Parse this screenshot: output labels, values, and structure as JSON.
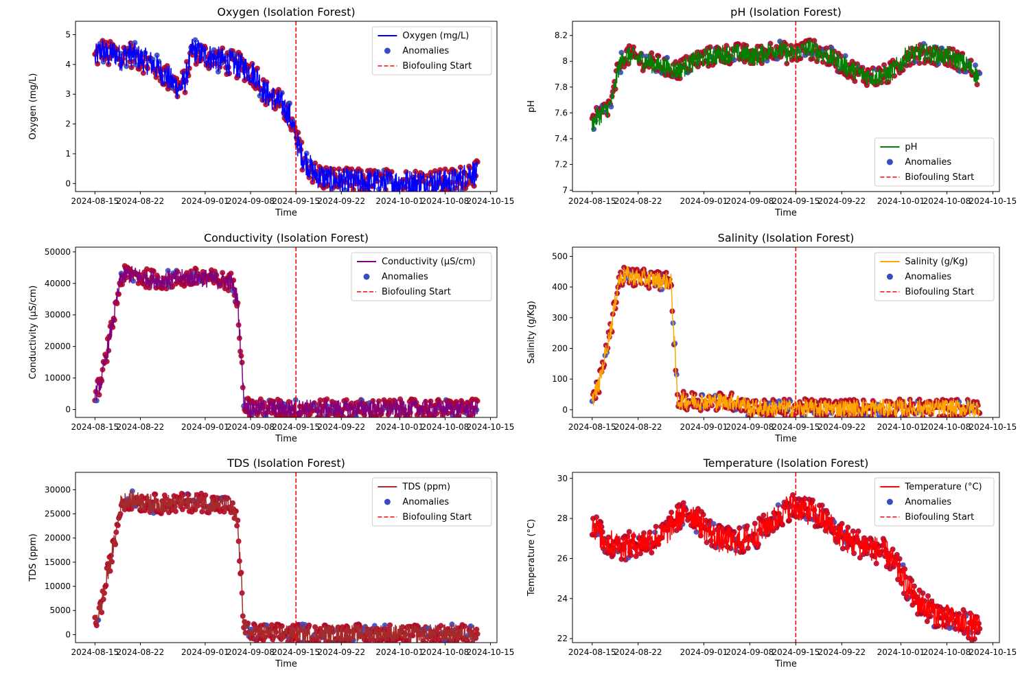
{
  "figure": {
    "bg_color": "#ffffff",
    "anomaly_color": "#3b4cc0",
    "anomaly_edge_color": "#b40426",
    "threshold_color": "#ff0000"
  },
  "chart_data": [
    {
      "type": "line",
      "title": "Oxygen (Isolation Forest)",
      "xlabel": "Time",
      "ylabel": "Oxygen (mg/L)",
      "x_range": [
        "2024-08-12",
        "2024-10-16"
      ],
      "ylim": [
        -0.27,
        5.45
      ],
      "yticks": [
        0,
        1,
        2,
        3,
        4,
        5
      ],
      "xticks": [
        "2024-08-15",
        "2024-08-22",
        "2024-09-01",
        "2024-09-08",
        "2024-09-15",
        "2024-09-22",
        "2024-10-01",
        "2024-10-08",
        "2024-10-15"
      ],
      "legend": {
        "position": "top-right",
        "entries": [
          "Oxygen (mg/L)",
          "Anomalies",
          "Biofouling Start"
        ]
      },
      "series": [
        {
          "name": "Oxygen (mg/L)",
          "color": "#0000ff",
          "points": [
            [
              "2024-08-15",
              4.2
            ],
            [
              "2024-08-16",
              4.5
            ],
            [
              "2024-08-17",
              4.3
            ],
            [
              "2024-08-18",
              4.4
            ],
            [
              "2024-08-19",
              4.2
            ],
            [
              "2024-08-20",
              4.4
            ],
            [
              "2024-08-22",
              4.2
            ],
            [
              "2024-08-24",
              4.0
            ],
            [
              "2024-08-26",
              3.6
            ],
            [
              "2024-08-28",
              3.2
            ],
            [
              "2024-08-29",
              3.5
            ],
            [
              "2024-08-30",
              4.5
            ],
            [
              "2024-09-01",
              4.3
            ],
            [
              "2024-09-04",
              4.1
            ],
            [
              "2024-09-07",
              3.9
            ],
            [
              "2024-09-09",
              3.6
            ],
            [
              "2024-09-10",
              3.1
            ],
            [
              "2024-09-12",
              2.8
            ],
            [
              "2024-09-13",
              2.6
            ],
            [
              "2024-09-14",
              2.3
            ],
            [
              "2024-09-15",
              1.5
            ],
            [
              "2024-09-16",
              0.9
            ],
            [
              "2024-09-17",
              0.6
            ],
            [
              "2024-09-18",
              0.3
            ],
            [
              "2024-09-20",
              0.15
            ],
            [
              "2024-09-22",
              0.08
            ],
            [
              "2024-09-25",
              0.05
            ],
            [
              "2024-09-30",
              0.04
            ],
            [
              "2024-10-05",
              0.05
            ],
            [
              "2024-10-08",
              0.05
            ],
            [
              "2024-10-10",
              0.1
            ],
            [
              "2024-10-12",
              0.4
            ],
            [
              "2024-10-13",
              0.3
            ]
          ]
        }
      ],
      "anomaly_band_half_width": 0.45,
      "threshold": {
        "name": "Biofouling Start",
        "x": "2024-09-15"
      }
    },
    {
      "type": "line",
      "title": "pH (Isolation Forest)",
      "xlabel": "Time",
      "ylabel": "pH",
      "x_range": [
        "2024-08-12",
        "2024-10-16"
      ],
      "ylim": [
        6.99,
        8.31
      ],
      "yticks": [
        7.0,
        7.2,
        7.4,
        7.6,
        7.8,
        8.0,
        8.2
      ],
      "xticks": [
        "2024-08-15",
        "2024-08-22",
        "2024-09-01",
        "2024-09-08",
        "2024-09-15",
        "2024-09-22",
        "2024-10-01",
        "2024-10-08",
        "2024-10-15"
      ],
      "legend": {
        "position": "bottom-right",
        "entries": [
          "pH",
          "Anomalies",
          "Biofouling Start"
        ]
      },
      "series": [
        {
          "name": "pH",
          "color": "#008000",
          "points": [
            [
              "2024-08-15",
              7.52
            ],
            [
              "2024-08-16",
              7.58
            ],
            [
              "2024-08-17",
              7.62
            ],
            [
              "2024-08-18",
              7.68
            ],
            [
              "2024-08-19",
              7.95
            ],
            [
              "2024-08-20",
              8.05
            ],
            [
              "2024-08-22",
              8.02
            ],
            [
              "2024-08-25",
              7.97
            ],
            [
              "2024-08-28",
              7.93
            ],
            [
              "2024-08-31",
              8.01
            ],
            [
              "2024-09-03",
              8.05
            ],
            [
              "2024-09-06",
              8.06
            ],
            [
              "2024-09-09",
              8.04
            ],
            [
              "2024-09-12",
              8.1
            ],
            [
              "2024-09-14",
              8.05
            ],
            [
              "2024-09-17",
              8.1
            ],
            [
              "2024-09-20",
              8.04
            ],
            [
              "2024-09-23",
              7.95
            ],
            [
              "2024-09-25",
              7.9
            ],
            [
              "2024-09-27",
              7.88
            ],
            [
              "2024-09-29",
              7.9
            ],
            [
              "2024-10-01",
              7.98
            ],
            [
              "2024-10-02",
              8.05
            ],
            [
              "2024-10-05",
              8.06
            ],
            [
              "2024-10-08",
              8.04
            ],
            [
              "2024-10-10",
              8.0
            ],
            [
              "2024-10-12",
              7.93
            ],
            [
              "2024-10-13",
              7.86
            ]
          ]
        }
      ],
      "anomaly_band_half_width": 0.08,
      "threshold": {
        "name": "Biofouling Start",
        "x": "2024-09-15"
      }
    },
    {
      "type": "line",
      "title": "Conductivity (Isolation Forest)",
      "xlabel": "Time",
      "ylabel": "Conductivity (µS/cm)",
      "x_range": [
        "2024-08-12",
        "2024-10-16"
      ],
      "ylim": [
        -2500,
        51500
      ],
      "yticks": [
        0,
        10000,
        20000,
        30000,
        40000,
        50000
      ],
      "xticks": [
        "2024-08-15",
        "2024-08-22",
        "2024-09-01",
        "2024-09-08",
        "2024-09-15",
        "2024-09-22",
        "2024-10-01",
        "2024-10-08",
        "2024-10-15"
      ],
      "legend": {
        "position": "top-right",
        "entries": [
          "Conductivity (µS/cm)",
          "Anomalies",
          "Biofouling Start"
        ]
      },
      "series": [
        {
          "name": "Conductivity (µS/cm)",
          "color": "#800080",
          "points": [
            [
              "2024-08-15",
              4500
            ],
            [
              "2024-08-16",
              9000
            ],
            [
              "2024-08-17",
              20000
            ],
            [
              "2024-08-18",
              30000
            ],
            [
              "2024-08-19",
              42000
            ],
            [
              "2024-08-20",
              43000
            ],
            [
              "2024-08-22",
              42000
            ],
            [
              "2024-08-25",
              41000
            ],
            [
              "2024-08-28",
              41500
            ],
            [
              "2024-08-31",
              42000
            ],
            [
              "2024-09-03",
              41000
            ],
            [
              "2024-09-05",
              40500
            ],
            [
              "2024-09-06",
              35000
            ],
            [
              "2024-09-07",
              2000
            ],
            [
              "2024-09-08",
              500
            ],
            [
              "2024-09-10",
              400
            ],
            [
              "2024-09-15",
              350
            ],
            [
              "2024-09-22",
              300
            ],
            [
              "2024-10-01",
              300
            ],
            [
              "2024-10-08",
              300
            ],
            [
              "2024-10-13",
              300
            ]
          ]
        }
      ],
      "anomaly_band_half_width": 3000,
      "threshold": {
        "name": "Biofouling Start",
        "x": "2024-09-15"
      }
    },
    {
      "type": "line",
      "title": "Salinity (Isolation Forest)",
      "xlabel": "Time",
      "ylabel": "Salinity (g/Kg)",
      "x_range": [
        "2024-08-12",
        "2024-10-16"
      ],
      "ylim": [
        -25,
        530
      ],
      "yticks": [
        0,
        100,
        200,
        300,
        400,
        500
      ],
      "xticks": [
        "2024-08-15",
        "2024-08-22",
        "2024-09-01",
        "2024-09-08",
        "2024-09-15",
        "2024-09-22",
        "2024-10-01",
        "2024-10-08",
        "2024-10-15"
      ],
      "legend": {
        "position": "top-right",
        "entries": [
          "Salinity (g/Kg)",
          "Anomalies",
          "Biofouling Start"
        ]
      },
      "series": [
        {
          "name": "Salinity (g/Kg)",
          "color": "#ffa500",
          "points": [
            [
              "2024-08-15",
              35
            ],
            [
              "2024-08-16",
              80
            ],
            [
              "2024-08-17",
              180
            ],
            [
              "2024-08-18",
              280
            ],
            [
              "2024-08-19",
              420
            ],
            [
              "2024-08-20",
              440
            ],
            [
              "2024-08-22",
              430
            ],
            [
              "2024-08-24",
              425
            ],
            [
              "2024-08-26",
              420
            ],
            [
              "2024-08-27",
              415
            ],
            [
              "2024-08-28",
              30
            ],
            [
              "2024-08-31",
              28
            ],
            [
              "2024-09-03",
              27
            ],
            [
              "2024-09-06",
              26
            ],
            [
              "2024-09-07",
              20
            ],
            [
              "2024-09-08",
              5
            ],
            [
              "2024-09-15",
              5
            ],
            [
              "2024-09-22",
              5
            ],
            [
              "2024-10-01",
              5
            ],
            [
              "2024-10-08",
              5
            ],
            [
              "2024-10-13",
              5
            ]
          ]
        }
      ],
      "anomaly_band_half_width": 30,
      "threshold": {
        "name": "Biofouling Start",
        "x": "2024-09-15"
      }
    },
    {
      "type": "line",
      "title": "TDS (Isolation Forest)",
      "xlabel": "Time",
      "ylabel": "TDS (ppm)",
      "x_range": [
        "2024-08-12",
        "2024-10-16"
      ],
      "ylim": [
        -1650,
        33600
      ],
      "yticks": [
        0,
        5000,
        10000,
        15000,
        20000,
        25000,
        30000
      ],
      "xticks": [
        "2024-08-15",
        "2024-08-22",
        "2024-09-01",
        "2024-09-08",
        "2024-09-15",
        "2024-09-22",
        "2024-10-01",
        "2024-10-08",
        "2024-10-15"
      ],
      "legend": {
        "position": "top-right",
        "entries": [
          "TDS (ppm)",
          "Anomalies",
          "Biofouling Start"
        ]
      },
      "series": [
        {
          "name": "TDS (ppm)",
          "color": "#a52a2a",
          "points": [
            [
              "2024-08-15",
              2500
            ],
            [
              "2024-08-16",
              6000
            ],
            [
              "2024-08-17",
              13000
            ],
            [
              "2024-08-18",
              19000
            ],
            [
              "2024-08-19",
              27000
            ],
            [
              "2024-08-20",
              28000
            ],
            [
              "2024-08-22",
              27500
            ],
            [
              "2024-08-25",
              27000
            ],
            [
              "2024-08-28",
              27200
            ],
            [
              "2024-08-31",
              27500
            ],
            [
              "2024-09-03",
              27000
            ],
            [
              "2024-09-05",
              26500
            ],
            [
              "2024-09-06",
              23000
            ],
            [
              "2024-09-07",
              1500
            ],
            [
              "2024-09-08",
              300
            ],
            [
              "2024-09-10",
              250
            ],
            [
              "2024-09-15",
              200
            ],
            [
              "2024-09-22",
              200
            ],
            [
              "2024-10-01",
              200
            ],
            [
              "2024-10-08",
              200
            ],
            [
              "2024-10-13",
              200
            ]
          ]
        }
      ],
      "anomaly_band_half_width": 2000,
      "threshold": {
        "name": "Biofouling Start",
        "x": "2024-09-15"
      }
    },
    {
      "type": "line",
      "title": "Temperature (Isolation Forest)",
      "xlabel": "Time",
      "ylabel": "Temperature (°C)",
      "x_range": [
        "2024-08-12",
        "2024-10-16"
      ],
      "ylim": [
        21.8,
        30.3
      ],
      "yticks": [
        22,
        24,
        26,
        28,
        30
      ],
      "xticks": [
        "2024-08-15",
        "2024-08-22",
        "2024-09-01",
        "2024-09-08",
        "2024-09-15",
        "2024-09-22",
        "2024-10-01",
        "2024-10-08",
        "2024-10-15"
      ],
      "legend": {
        "position": "top-right",
        "entries": [
          "Temperature (°C)",
          "Anomalies",
          "Biofouling Start"
        ]
      },
      "series": [
        {
          "name": "Temperature (°C)",
          "color": "#ff0000",
          "points": [
            [
              "2024-08-15",
              27.8
            ],
            [
              "2024-08-17",
              26.8
            ],
            [
              "2024-08-20",
              26.6
            ],
            [
              "2024-08-23",
              26.8
            ],
            [
              "2024-08-26",
              27.2
            ],
            [
              "2024-08-28",
              28.0
            ],
            [
              "2024-08-30",
              28.3
            ],
            [
              "2024-09-01",
              27.6
            ],
            [
              "2024-09-03",
              27.0
            ],
            [
              "2024-09-06",
              26.8
            ],
            [
              "2024-09-09",
              27.2
            ],
            [
              "2024-09-12",
              28.0
            ],
            [
              "2024-09-14",
              28.6
            ],
            [
              "2024-09-16",
              28.5
            ],
            [
              "2024-09-19",
              28.0
            ],
            [
              "2024-09-21",
              27.4
            ],
            [
              "2024-09-23",
              26.9
            ],
            [
              "2024-09-26",
              26.6
            ],
            [
              "2024-09-29",
              26.2
            ],
            [
              "2024-10-01",
              25.2
            ],
            [
              "2024-10-03",
              24.0
            ],
            [
              "2024-10-06",
              23.3
            ],
            [
              "2024-10-09",
              22.9
            ],
            [
              "2024-10-11",
              22.7
            ],
            [
              "2024-10-13",
              22.5
            ]
          ]
        }
      ],
      "anomaly_band_half_width": 0.7,
      "threshold": {
        "name": "Biofouling Start",
        "x": "2024-09-15"
      }
    }
  ]
}
